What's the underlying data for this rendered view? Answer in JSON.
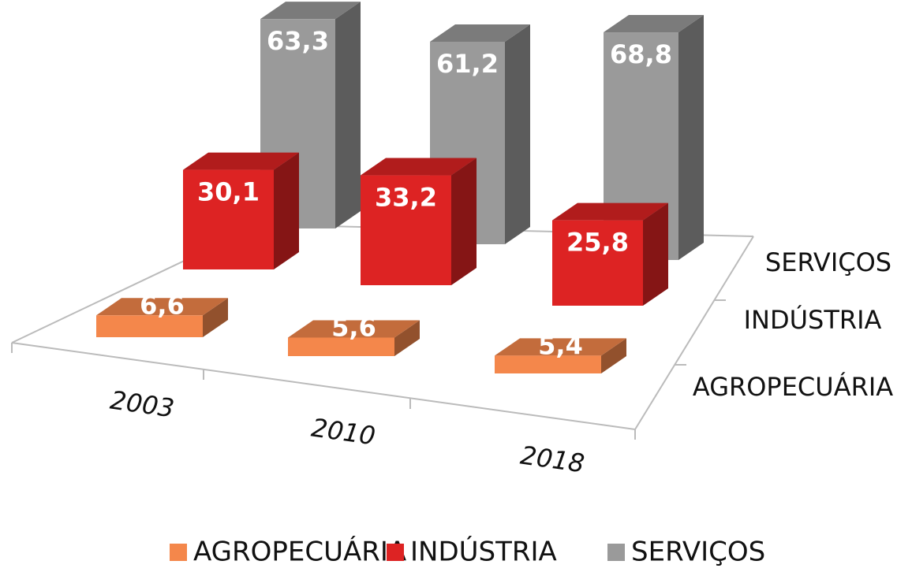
{
  "chart_data": {
    "type": "bar3d",
    "categories": [
      "2003",
      "2010",
      "2018"
    ],
    "series": [
      {
        "name": "AGROPECUÁRIA",
        "color": "#f4874b",
        "values": [
          6.6,
          5.6,
          5.4
        ],
        "value_labels": [
          "6,6",
          "5,6",
          "5,4"
        ]
      },
      {
        "name": "INDÚSTRIA",
        "color": "#dd2323",
        "values": [
          30.1,
          33.2,
          25.8
        ],
        "value_labels": [
          "30,1",
          "33,2",
          "25,8"
        ]
      },
      {
        "name": "SERVIÇOS",
        "color": "#9a9a9a",
        "values": [
          63.3,
          61.2,
          68.8
        ],
        "value_labels": [
          "63,3",
          "61,2",
          "68,8"
        ]
      }
    ]
  }
}
